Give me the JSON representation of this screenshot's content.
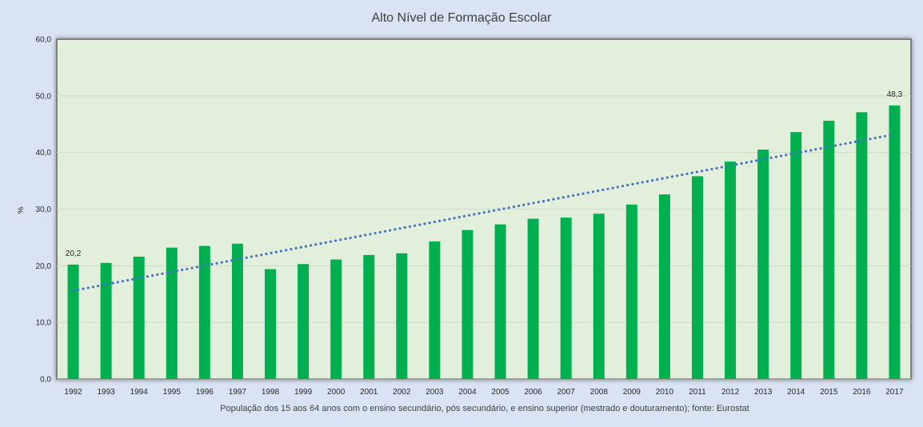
{
  "chart_data": {
    "type": "bar",
    "title": "Alto Nível de Formação Escolar",
    "xlabel": "População dos 15 aos 64 anos com o ensino secundário, pós secundário, e ensino superior (mestrado e douturamento);  fonte:  Eurostat",
    "ylabel": "%",
    "ylim": [
      0,
      60
    ],
    "yticks": [
      "0,0",
      "10,0",
      "20,0",
      "30,0",
      "40,0",
      "50,0",
      "60,0"
    ],
    "grid": true,
    "categories": [
      "1992",
      "1993",
      "1994",
      "1995",
      "1996",
      "1997",
      "1998",
      "1999",
      "2000",
      "2001",
      "2002",
      "2003",
      "2004",
      "2005",
      "2006",
      "2007",
      "2008",
      "2009",
      "2010",
      "2011",
      "2012",
      "2013",
      "2014",
      "2015",
      "2016",
      "2017"
    ],
    "series": [
      {
        "values": [
          20.2,
          20.5,
          21.6,
          23.2,
          23.5,
          23.9,
          19.4,
          20.3,
          21.1,
          21.9,
          22.2,
          24.3,
          26.3,
          27.3,
          28.3,
          28.5,
          29.2,
          30.8,
          32.6,
          35.8,
          38.4,
          40.5,
          43.6,
          45.6,
          47.1,
          48.3
        ],
        "color": "#00b050"
      }
    ],
    "data_labels": [
      {
        "category": "1992",
        "text": "20,2"
      },
      {
        "category": "2017",
        "text": "48,3"
      }
    ],
    "trendline": {
      "type": "linear",
      "style": "dotted",
      "color": "#4472c4",
      "start": 15.6,
      "end": 43.2
    },
    "colors": {
      "background": "#d9e3f3",
      "plot_area": "#e2efda",
      "bar": "#00b050",
      "trend": "#4472c4"
    }
  }
}
